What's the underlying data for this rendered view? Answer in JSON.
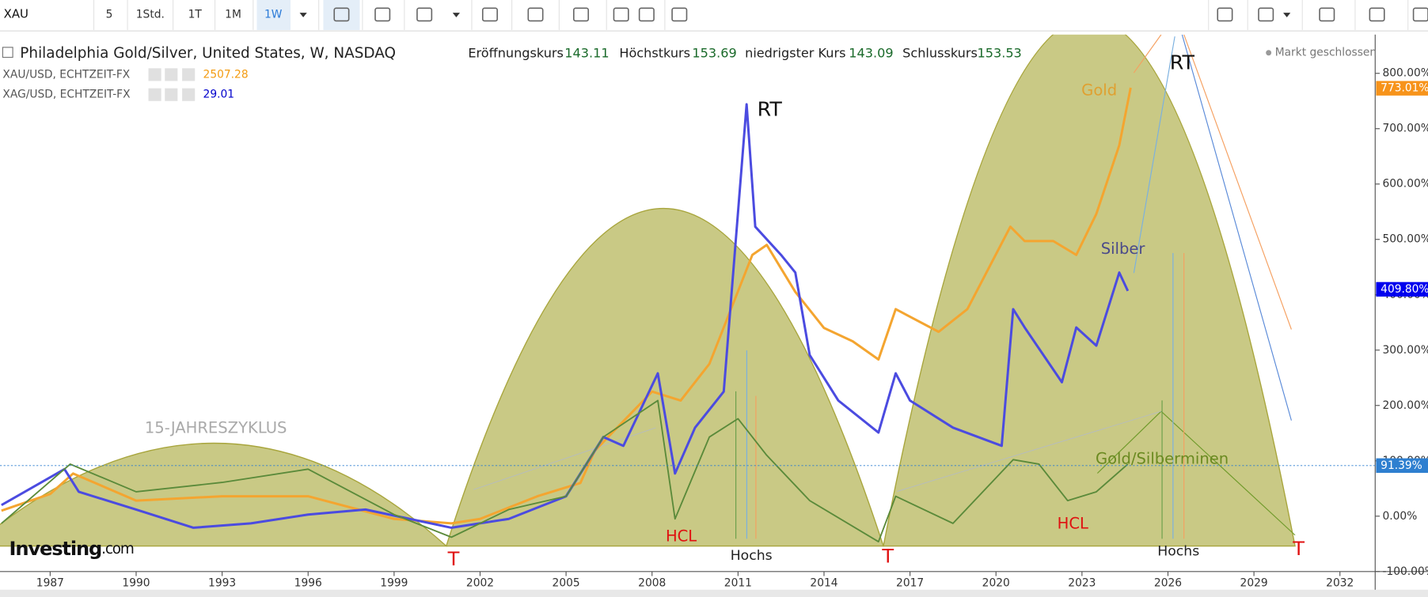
{
  "toolbar": {
    "symbol": "XAU",
    "intervals": [
      "5",
      "1Std.",
      "1T",
      "1M",
      "1W"
    ]
  },
  "header": {
    "title": "Philadelphia Gold/Silver, United States, W, NASDAQ",
    "quotes": [
      {
        "label": "Eröffnungskurs",
        "value": 143.11
      },
      {
        "label": "Höchstkurs",
        "value": 153.69
      },
      {
        "label": "niedrigster Kurs",
        "value": 143.09
      },
      {
        "label": "Schlusskurs",
        "value": 153.53
      }
    ],
    "status": "Markt geschlossen"
  },
  "legend": [
    {
      "name": "XAU/USD, ECHTZEIT-FX",
      "value": 2507.28,
      "color": "#f39c12"
    },
    {
      "name": "XAG/USD, ECHTZEIT-FX",
      "value": 29.01,
      "color": "#0000cc"
    }
  ],
  "logo": {
    "brand": "Investing",
    "suffix": ".com"
  },
  "chart_data": {
    "type": "line",
    "xlim": [
      1985.25,
      2033.23
    ],
    "ylim": [
      -100,
      870
    ],
    "xticks": [
      1987,
      1990,
      1993,
      1996,
      1999,
      2002,
      2005,
      2008,
      2011,
      2014,
      2017,
      2020,
      2023,
      2026,
      2029,
      2032
    ],
    "yticks": [
      {
        "value": -100,
        "label": "-100.00%"
      },
      {
        "value": 0,
        "label": "0.00%"
      },
      {
        "value": 100,
        "label": "100.00%"
      },
      {
        "value": 200,
        "label": "200.00%"
      },
      {
        "value": 300,
        "label": "300.00%"
      },
      {
        "value": 400,
        "label": "400.00%"
      },
      {
        "value": 500,
        "label": "500.00%"
      },
      {
        "value": 600,
        "label": "600.00%"
      },
      {
        "value": 700,
        "label": "700.00%"
      },
      {
        "value": 800,
        "label": "800.00%"
      }
    ],
    "series": [
      {
        "name": "Gold",
        "color": "#f4a530",
        "x": [
          1985.3,
          1987,
          1987.8,
          1990,
          1993,
          1996,
          1999,
          2001,
          2002,
          2004,
          2005.5,
          2006,
          2008,
          2009,
          2010,
          2011.5,
          2012,
          2013,
          2014,
          2015,
          2015.9,
          2016.5,
          2018,
          2019,
          2020.5,
          2021,
          2022,
          2022.8,
          2023.5,
          2024.3,
          2024.7
        ],
        "values": [
          10,
          40,
          77,
          28,
          36,
          36,
          -5,
          -13,
          -5,
          36,
          60,
          118,
          225,
          209,
          275,
          472,
          490,
          405,
          340,
          316,
          283,
          374,
          333,
          374,
          523,
          497,
          497,
          472,
          546,
          670,
          774
        ]
      },
      {
        "name": "Silber",
        "color": "#4b4be0",
        "x": [
          1985.3,
          1987.5,
          1988,
          1990,
          1992,
          1994,
          1996,
          1998,
          2001,
          2003,
          2005,
          2006.3,
          2007,
          2008.2,
          2008.8,
          2009.5,
          2010.5,
          2011.3,
          2011.6,
          2012.5,
          2013,
          2013.5,
          2014.5,
          2015.9,
          2016.5,
          2017,
          2018.5,
          2020.2,
          2020.6,
          2021,
          2022.3,
          2022.8,
          2023.5,
          2024.3,
          2024.6
        ],
        "values": [
          20,
          85,
          44,
          12,
          -21,
          -13,
          3,
          12,
          -21,
          -5,
          36,
          143,
          127,
          258,
          77,
          160,
          225,
          744,
          523,
          472,
          440,
          291,
          209,
          151,
          258,
          209,
          160,
          127,
          374,
          341,
          242,
          341,
          308,
          440,
          407
        ]
      },
      {
        "name": "Gold/Silberminen",
        "color": "#5a8a3a",
        "x": [
          1985.3,
          1987.7,
          1990,
          1993,
          1996,
          1999,
          2001,
          2003,
          2005,
          2006.3,
          2008.2,
          2008.8,
          2010,
          2011,
          2012,
          2013.5,
          2015.9,
          2016.5,
          2018.5,
          2020.6,
          2021.5,
          2022.5,
          2023.5,
          2024.6
        ],
        "values": [
          -13,
          94,
          44,
          61,
          85,
          3,
          -38,
          12,
          36,
          143,
          209,
          -5,
          143,
          176,
          110,
          28,
          -46,
          36,
          -13,
          102,
          94,
          28,
          44,
          94
        ]
      }
    ],
    "markers": [
      {
        "value": 773.01,
        "label": "773.01%",
        "color": "#f7931a"
      },
      {
        "value": 409.8,
        "label": "409.80%",
        "color": "#0000ee"
      },
      {
        "value": 91.39,
        "label": "91.39%",
        "color": "#2e7fd0"
      }
    ],
    "annotations": [
      "15-JAHRESZYKLUS",
      "RT",
      "RT",
      "HCL",
      "HCL",
      "Hochs",
      "Hochs",
      "T",
      "T",
      "T"
    ]
  }
}
